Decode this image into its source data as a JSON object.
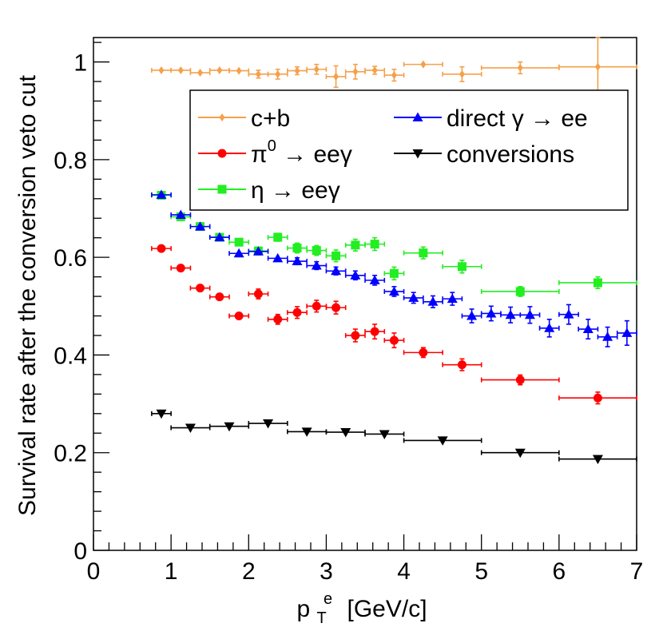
{
  "chart_data": {
    "type": "scatter",
    "title": "",
    "xlabel_main": "p",
    "xlabel_sup": "e",
    "xlabel_sub": "T",
    "xlabel_rest": "[GeV/c]",
    "ylabel": "Survival rate after the conversion veto cut",
    "xlim": [
      0,
      7
    ],
    "ylim": [
      0,
      1.05
    ],
    "x_ticks": [
      0,
      1,
      2,
      3,
      4,
      5,
      6,
      7
    ],
    "x_tick_labels": [
      "0",
      "1",
      "2",
      "3",
      "4",
      "5",
      "6",
      "7"
    ],
    "y_ticks": [
      0,
      0.2,
      0.4,
      0.6,
      0.8,
      1
    ],
    "y_tick_labels": [
      "0",
      "0.2",
      "0.4",
      "0.6",
      "0.8",
      "1"
    ],
    "legend_position": "top-right",
    "series": [
      {
        "name": "c+b",
        "color": "#f5a04a",
        "marker": "diamond",
        "points": [
          {
            "x": 0.875,
            "xerr": 0.125,
            "y": 0.983,
            "yerr": 0.003
          },
          {
            "x": 1.125,
            "xerr": 0.125,
            "y": 0.983,
            "yerr": 0.004
          },
          {
            "x": 1.375,
            "xerr": 0.125,
            "y": 0.978,
            "yerr": 0.004
          },
          {
            "x": 1.625,
            "xerr": 0.125,
            "y": 0.983,
            "yerr": 0.005
          },
          {
            "x": 1.875,
            "xerr": 0.125,
            "y": 0.982,
            "yerr": 0.005
          },
          {
            "x": 2.125,
            "xerr": 0.125,
            "y": 0.975,
            "yerr": 0.008
          },
          {
            "x": 2.375,
            "xerr": 0.125,
            "y": 0.975,
            "yerr": 0.01
          },
          {
            "x": 2.625,
            "xerr": 0.125,
            "y": 0.982,
            "yerr": 0.008
          },
          {
            "x": 2.875,
            "xerr": 0.125,
            "y": 0.985,
            "yerr": 0.01
          },
          {
            "x": 3.125,
            "xerr": 0.125,
            "y": 0.97,
            "yerr": 0.022
          },
          {
            "x": 3.375,
            "xerr": 0.125,
            "y": 0.98,
            "yerr": 0.015
          },
          {
            "x": 3.625,
            "xerr": 0.125,
            "y": 0.983,
            "yerr": 0.008
          },
          {
            "x": 3.875,
            "xerr": 0.125,
            "y": 0.973,
            "yerr": 0.012
          },
          {
            "x": 4.25,
            "xerr": 0.25,
            "y": 0.995,
            "yerr": 0.004
          },
          {
            "x": 4.75,
            "xerr": 0.25,
            "y": 0.975,
            "yerr": 0.015
          },
          {
            "x": 5.5,
            "xerr": 0.5,
            "y": 0.988,
            "yerr": 0.012
          },
          {
            "x": 6.5,
            "xerr": 0.5,
            "y": 0.99,
            "yerr": 0.06
          }
        ]
      },
      {
        "name": "π⁰ → eeγ",
        "legend_main": "π",
        "legend_sup": "0",
        "legend_rest": " → eeγ",
        "color": "#ff0000",
        "marker": "circle",
        "points": [
          {
            "x": 0.875,
            "xerr": 0.125,
            "y": 0.618,
            "yerr": 0.005
          },
          {
            "x": 1.125,
            "xerr": 0.125,
            "y": 0.578,
            "yerr": 0.005
          },
          {
            "x": 1.375,
            "xerr": 0.125,
            "y": 0.537,
            "yerr": 0.005
          },
          {
            "x": 1.625,
            "xerr": 0.125,
            "y": 0.519,
            "yerr": 0.005
          },
          {
            "x": 1.875,
            "xerr": 0.125,
            "y": 0.48,
            "yerr": 0.006
          },
          {
            "x": 2.125,
            "xerr": 0.125,
            "y": 0.525,
            "yerr": 0.01
          },
          {
            "x": 2.375,
            "xerr": 0.125,
            "y": 0.473,
            "yerr": 0.01
          },
          {
            "x": 2.625,
            "xerr": 0.125,
            "y": 0.487,
            "yerr": 0.012
          },
          {
            "x": 2.875,
            "xerr": 0.125,
            "y": 0.5,
            "yerr": 0.012
          },
          {
            "x": 3.125,
            "xerr": 0.125,
            "y": 0.497,
            "yerr": 0.013
          },
          {
            "x": 3.375,
            "xerr": 0.125,
            "y": 0.44,
            "yerr": 0.013
          },
          {
            "x": 3.625,
            "xerr": 0.125,
            "y": 0.448,
            "yerr": 0.015
          },
          {
            "x": 3.875,
            "xerr": 0.125,
            "y": 0.43,
            "yerr": 0.015
          },
          {
            "x": 4.25,
            "xerr": 0.25,
            "y": 0.405,
            "yerr": 0.01
          },
          {
            "x": 4.75,
            "xerr": 0.25,
            "y": 0.38,
            "yerr": 0.012
          },
          {
            "x": 5.5,
            "xerr": 0.5,
            "y": 0.349,
            "yerr": 0.01
          },
          {
            "x": 6.5,
            "xerr": 0.5,
            "y": 0.312,
            "yerr": 0.012
          }
        ]
      },
      {
        "name": "η → eeγ",
        "color": "#22ee22",
        "marker": "square",
        "points": [
          {
            "x": 0.875,
            "xerr": 0.125,
            "y": 0.727,
            "yerr": 0.005
          },
          {
            "x": 1.125,
            "xerr": 0.125,
            "y": 0.683,
            "yerr": 0.005
          },
          {
            "x": 1.375,
            "xerr": 0.125,
            "y": 0.663,
            "yerr": 0.006
          },
          {
            "x": 1.625,
            "xerr": 0.125,
            "y": 0.641,
            "yerr": 0.006
          },
          {
            "x": 1.875,
            "xerr": 0.125,
            "y": 0.631,
            "yerr": 0.007
          },
          {
            "x": 2.125,
            "xerr": 0.125,
            "y": 0.613,
            "yerr": 0.008
          },
          {
            "x": 2.375,
            "xerr": 0.125,
            "y": 0.641,
            "yerr": 0.008
          },
          {
            "x": 2.625,
            "xerr": 0.125,
            "y": 0.619,
            "yerr": 0.01
          },
          {
            "x": 2.875,
            "xerr": 0.125,
            "y": 0.614,
            "yerr": 0.01
          },
          {
            "x": 3.125,
            "xerr": 0.125,
            "y": 0.603,
            "yerr": 0.012
          },
          {
            "x": 3.375,
            "xerr": 0.125,
            "y": 0.625,
            "yerr": 0.012
          },
          {
            "x": 3.625,
            "xerr": 0.125,
            "y": 0.627,
            "yerr": 0.013
          },
          {
            "x": 3.875,
            "xerr": 0.125,
            "y": 0.567,
            "yerr": 0.013
          },
          {
            "x": 4.25,
            "xerr": 0.25,
            "y": 0.609,
            "yerr": 0.012
          },
          {
            "x": 4.75,
            "xerr": 0.25,
            "y": 0.581,
            "yerr": 0.013
          },
          {
            "x": 5.5,
            "xerr": 0.5,
            "y": 0.53,
            "yerr": 0.01
          },
          {
            "x": 6.5,
            "xerr": 0.5,
            "y": 0.548,
            "yerr": 0.012
          }
        ]
      },
      {
        "name": "direct γ → ee",
        "color": "#0000ff",
        "marker": "triangle-up",
        "points": [
          {
            "x": 0.875,
            "xerr": 0.125,
            "y": 0.728,
            "yerr": 0.005
          },
          {
            "x": 1.125,
            "xerr": 0.125,
            "y": 0.687,
            "yerr": 0.005
          },
          {
            "x": 1.375,
            "xerr": 0.125,
            "y": 0.663,
            "yerr": 0.005
          },
          {
            "x": 1.625,
            "xerr": 0.125,
            "y": 0.641,
            "yerr": 0.005
          },
          {
            "x": 1.875,
            "xerr": 0.125,
            "y": 0.608,
            "yerr": 0.005
          },
          {
            "x": 2.125,
            "xerr": 0.125,
            "y": 0.612,
            "yerr": 0.006
          },
          {
            "x": 2.375,
            "xerr": 0.125,
            "y": 0.598,
            "yerr": 0.006
          },
          {
            "x": 2.625,
            "xerr": 0.125,
            "y": 0.592,
            "yerr": 0.007
          },
          {
            "x": 2.875,
            "xerr": 0.125,
            "y": 0.583,
            "yerr": 0.008
          },
          {
            "x": 3.125,
            "xerr": 0.125,
            "y": 0.572,
            "yerr": 0.008
          },
          {
            "x": 3.375,
            "xerr": 0.125,
            "y": 0.563,
            "yerr": 0.009
          },
          {
            "x": 3.625,
            "xerr": 0.125,
            "y": 0.553,
            "yerr": 0.01
          },
          {
            "x": 3.875,
            "xerr": 0.125,
            "y": 0.53,
            "yerr": 0.01
          },
          {
            "x": 4.125,
            "xerr": 0.125,
            "y": 0.517,
            "yerr": 0.011
          },
          {
            "x": 4.375,
            "xerr": 0.125,
            "y": 0.509,
            "yerr": 0.012
          },
          {
            "x": 4.625,
            "xerr": 0.125,
            "y": 0.515,
            "yerr": 0.013
          },
          {
            "x": 4.875,
            "xerr": 0.125,
            "y": 0.48,
            "yerr": 0.014
          },
          {
            "x": 5.125,
            "xerr": 0.125,
            "y": 0.485,
            "yerr": 0.015
          },
          {
            "x": 5.375,
            "xerr": 0.125,
            "y": 0.482,
            "yerr": 0.016
          },
          {
            "x": 5.625,
            "xerr": 0.125,
            "y": 0.482,
            "yerr": 0.017
          },
          {
            "x": 5.875,
            "xerr": 0.125,
            "y": 0.455,
            "yerr": 0.018
          },
          {
            "x": 6.125,
            "xerr": 0.125,
            "y": 0.483,
            "yerr": 0.02
          },
          {
            "x": 6.375,
            "xerr": 0.125,
            "y": 0.453,
            "yerr": 0.02
          },
          {
            "x": 6.625,
            "xerr": 0.125,
            "y": 0.437,
            "yerr": 0.02
          },
          {
            "x": 6.875,
            "xerr": 0.125,
            "y": 0.445,
            "yerr": 0.025
          }
        ]
      },
      {
        "name": "conversions",
        "color": "#000000",
        "marker": "triangle-down",
        "points": [
          {
            "x": 0.875,
            "xerr": 0.125,
            "y": 0.28,
            "yerr": 0.003
          },
          {
            "x": 1.25,
            "xerr": 0.25,
            "y": 0.251,
            "yerr": 0.003
          },
          {
            "x": 1.75,
            "xerr": 0.25,
            "y": 0.254,
            "yerr": 0.003
          },
          {
            "x": 2.25,
            "xerr": 0.25,
            "y": 0.26,
            "yerr": 0.003
          },
          {
            "x": 2.75,
            "xerr": 0.25,
            "y": 0.243,
            "yerr": 0.003
          },
          {
            "x": 3.25,
            "xerr": 0.25,
            "y": 0.242,
            "yerr": 0.003
          },
          {
            "x": 3.75,
            "xerr": 0.25,
            "y": 0.238,
            "yerr": 0.003
          },
          {
            "x": 4.5,
            "xerr": 0.5,
            "y": 0.225,
            "yerr": 0.003
          },
          {
            "x": 5.5,
            "xerr": 0.5,
            "y": 0.2,
            "yerr": 0.003
          },
          {
            "x": 6.5,
            "xerr": 0.5,
            "y": 0.187,
            "yerr": 0.003
          }
        ]
      }
    ]
  }
}
